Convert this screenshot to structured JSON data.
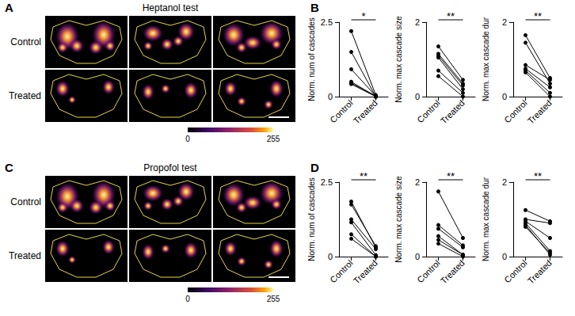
{
  "figure": {
    "rows": [
      {
        "image_panel": {
          "label": "A",
          "title": "Heptanol test",
          "row_labels": [
            "Control",
            "Treated"
          ],
          "colorbar": {
            "range": [
              0,
              255
            ],
            "ticks": [
              0,
              255
            ]
          }
        },
        "plot_panel_label": "B"
      },
      {
        "image_panel": {
          "label": "C",
          "title": "Propofol test",
          "row_labels": [
            "Control",
            "Treated"
          ],
          "colorbar": {
            "range": [
              0,
              255
            ],
            "ticks": [
              0,
              255
            ]
          }
        },
        "plot_panel_label": "D"
      }
    ]
  },
  "chart_data": [
    {
      "type": "line",
      "ylabel": "Norm. num of cascades",
      "annotation": "*",
      "categories": [
        "Control",
        "Treated"
      ],
      "ylim": [
        0,
        2.5
      ],
      "yticks": [
        0,
        2.5
      ],
      "grid": false,
      "color": "#000000",
      "marker": "circle",
      "series": [
        {
          "values": [
            2.2,
            0.05
          ]
        },
        {
          "values": [
            1.5,
            0.0
          ]
        },
        {
          "values": [
            0.92,
            0.02
          ]
        },
        {
          "values": [
            0.5,
            0.0
          ]
        },
        {
          "values": [
            0.45,
            0.03
          ]
        },
        {
          "values": [
            0.42,
            0.0
          ]
        }
      ]
    },
    {
      "type": "line",
      "ylabel": "Norm. max cascade size",
      "annotation": "**",
      "categories": [
        "Control",
        "Treated"
      ],
      "ylim": [
        0,
        2
      ],
      "yticks": [
        0,
        2
      ],
      "grid": false,
      "color": "#000000",
      "marker": "circle",
      "series": [
        {
          "values": [
            1.35,
            0.45
          ]
        },
        {
          "values": [
            1.15,
            0.35
          ]
        },
        {
          "values": [
            1.1,
            0.3
          ]
        },
        {
          "values": [
            1.05,
            0.2
          ]
        },
        {
          "values": [
            0.7,
            0.1
          ]
        },
        {
          "values": [
            0.55,
            0.0
          ]
        }
      ]
    },
    {
      "type": "line",
      "ylabel": "Norm. max cascade dur",
      "annotation": "**",
      "categories": [
        "Control",
        "Treated"
      ],
      "ylim": [
        0,
        2
      ],
      "yticks": [
        0,
        2
      ],
      "grid": false,
      "color": "#000000",
      "marker": "circle",
      "series": [
        {
          "values": [
            1.65,
            0.5
          ]
        },
        {
          "values": [
            1.45,
            0.35
          ]
        },
        {
          "values": [
            0.85,
            0.45
          ]
        },
        {
          "values": [
            0.75,
            0.25
          ]
        },
        {
          "values": [
            0.7,
            0.1
          ]
        },
        {
          "values": [
            0.65,
            0.0
          ]
        }
      ]
    },
    {
      "type": "line",
      "ylabel": "Norm. num of cascades",
      "annotation": "**",
      "categories": [
        "Control",
        "Treated"
      ],
      "ylim": [
        0,
        2.5
      ],
      "yticks": [
        0,
        2.5
      ],
      "grid": false,
      "color": "#000000",
      "marker": "circle",
      "series": [
        {
          "values": [
            1.85,
            0.3
          ]
        },
        {
          "values": [
            1.75,
            0.35
          ]
        },
        {
          "values": [
            1.25,
            0.25
          ]
        },
        {
          "values": [
            1.15,
            0.05
          ]
        },
        {
          "values": [
            0.75,
            0.0
          ]
        },
        {
          "values": [
            0.6,
            0.0
          ]
        }
      ]
    },
    {
      "type": "line",
      "ylabel": "Norm. max cascade size",
      "annotation": "**",
      "categories": [
        "Control",
        "Treated"
      ],
      "ylim": [
        0,
        2
      ],
      "yticks": [
        0,
        2
      ],
      "grid": false,
      "color": "#000000",
      "marker": "circle",
      "series": [
        {
          "values": [
            1.75,
            0.5
          ]
        },
        {
          "values": [
            0.85,
            0.3
          ]
        },
        {
          "values": [
            0.75,
            0.25
          ]
        },
        {
          "values": [
            0.55,
            0.05
          ]
        },
        {
          "values": [
            0.45,
            0.05
          ]
        },
        {
          "values": [
            0.35,
            0.0
          ]
        }
      ]
    },
    {
      "type": "line",
      "ylabel": "Norm. max cascade dur",
      "annotation": "**",
      "categories": [
        "Control",
        "Treated"
      ],
      "ylim": [
        0,
        2
      ],
      "yticks": [
        0,
        2
      ],
      "grid": false,
      "color": "#000000",
      "marker": "circle",
      "series": [
        {
          "values": [
            1.25,
            0.95
          ]
        },
        {
          "values": [
            1.0,
            0.9
          ]
        },
        {
          "values": [
            0.95,
            0.5
          ]
        },
        {
          "values": [
            0.9,
            0.15
          ]
        },
        {
          "values": [
            0.8,
            0.1
          ]
        },
        {
          "values": [
            0.85,
            0.05
          ]
        }
      ]
    }
  ]
}
